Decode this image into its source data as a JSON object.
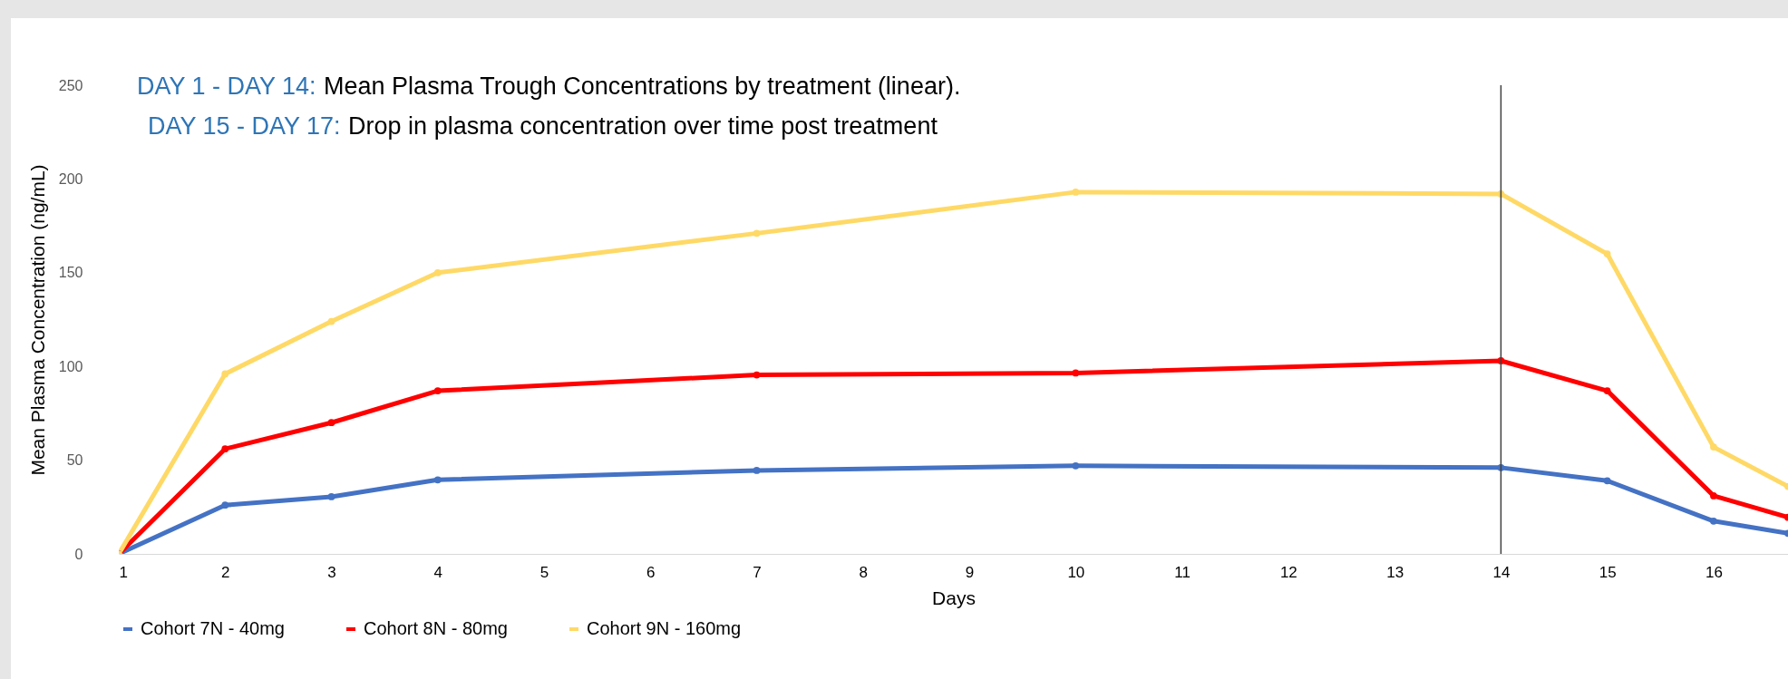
{
  "chart_data": {
    "type": "line",
    "xlabel": "Days",
    "ylabel": "Mean Plasma Concentration (ng/mL)",
    "annotations": [
      "DAY 1 - DAY 14: Mean Plasma Trough Concentrations by treatment (linear).",
      "DAY 15 - DAY 17: Drop in plasma concentration over time post treatment"
    ],
    "x": [
      1,
      2,
      3,
      4,
      7,
      10,
      14,
      15,
      16,
      16.7
    ],
    "series": [
      {
        "name": "Cohort 7N - 40mg",
        "color": "#4472c4",
        "values": [
          0,
          26,
          30.5,
          39.5,
          44.5,
          47,
          46,
          39,
          17.5,
          11
        ]
      },
      {
        "name": "Cohort 8N - 80mg",
        "color": "#ff0000",
        "values": [
          0,
          56,
          70,
          87,
          95.5,
          96.5,
          103,
          87,
          31,
          19.5
        ]
      },
      {
        "name": "Cohort 9N - 160mg",
        "color": "#ffd966",
        "values": [
          0,
          96,
          124,
          150,
          171,
          193,
          192,
          160,
          57,
          36
        ]
      }
    ],
    "xlim": [
      1,
      16.7
    ],
    "xticks": [
      1,
      2,
      3,
      4,
      5,
      6,
      7,
      8,
      9,
      10,
      11,
      12,
      13,
      14,
      15,
      16
    ],
    "ylim": [
      0,
      250
    ],
    "yticks": [
      0,
      50,
      100,
      150,
      200,
      250
    ],
    "ref_lines": [
      {
        "axis": "x",
        "value": 14,
        "color": "#404040"
      }
    ],
    "grid": false,
    "legend": "bottom",
    "marker": "circle",
    "line_style": "solid"
  }
}
